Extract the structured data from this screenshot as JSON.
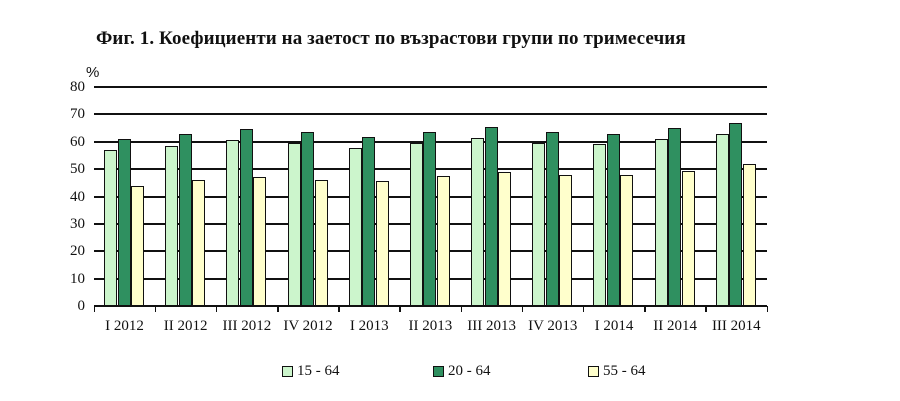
{
  "title": "Фиг. 1. Коефициенти на заетост по възрастови групи по тримесечия",
  "unit": "%",
  "colors": {
    "15-64": "#ccf5cc",
    "20-64": "#2f9060",
    "55-64": "#ffffcc"
  },
  "legend": [
    {
      "label": "15 - 64",
      "color": "#ccf5cc"
    },
    {
      "label": "20 - 64",
      "color": "#2f9060"
    },
    {
      "label": "55 - 64",
      "color": "#ffffcc"
    }
  ],
  "chart_data": {
    "type": "bar",
    "title": "Фиг. 1. Коефициенти на заетост по възрастови групи по тримесечия",
    "xlabel": "",
    "ylabel": "%",
    "ylim": [
      0,
      80
    ],
    "yticks": [
      0,
      10,
      20,
      30,
      40,
      50,
      60,
      70,
      80
    ],
    "grid": true,
    "legend_position": "bottom",
    "categories": [
      "I 2012",
      "II 2012",
      "III 2012",
      "IV 2012",
      "I 2013",
      "II 2013",
      "III 2013",
      "IV 2013",
      "I 2014",
      "II 2014",
      "III 2014"
    ],
    "series": [
      {
        "name": "15 - 64",
        "values": [
          57.0,
          58.4,
          60.6,
          59.5,
          57.7,
          59.5,
          61.3,
          59.7,
          59.0,
          61.0,
          62.8
        ]
      },
      {
        "name": "20 - 64",
        "values": [
          61.0,
          62.8,
          64.6,
          63.4,
          61.7,
          63.4,
          65.3,
          63.5,
          63.0,
          65.0,
          66.8
        ]
      },
      {
        "name": "55 - 64",
        "values": [
          44.0,
          46.0,
          47.0,
          46.0,
          45.6,
          47.4,
          49.0,
          48.0,
          47.8,
          49.3,
          51.7
        ]
      }
    ]
  }
}
